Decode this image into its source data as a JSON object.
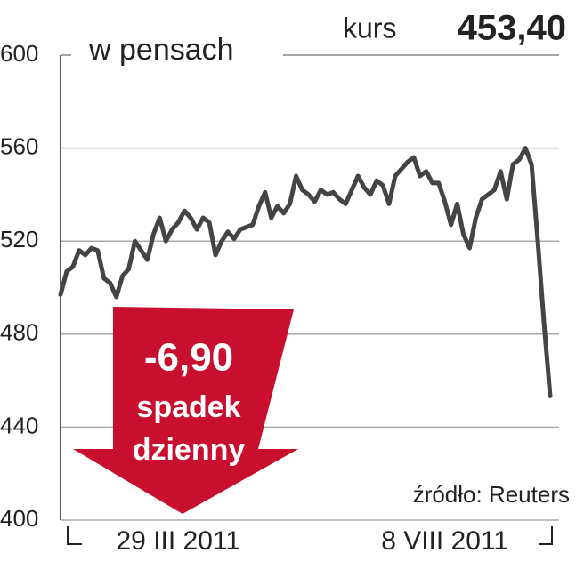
{
  "chart_data": {
    "type": "line",
    "ylabel": "w pensach",
    "price_label": "kurs",
    "price": "453,40",
    "annotation": [
      "-6,90",
      "spadek",
      "dzienny"
    ],
    "source": "źródło: Reuters",
    "categories": [
      null,
      null,
      null,
      null,
      null,
      null,
      null,
      null,
      null,
      null,
      null,
      null,
      null,
      null,
      null,
      null,
      null,
      null,
      null,
      "29 III 2011",
      null,
      null,
      null,
      null,
      null,
      null,
      null,
      null,
      null,
      null,
      null,
      null,
      null,
      null,
      null,
      null,
      null,
      null,
      null,
      null,
      null,
      null,
      null,
      null,
      null,
      null,
      null,
      null,
      null,
      null,
      null,
      null,
      null,
      null,
      null,
      null,
      null,
      null,
      null,
      null,
      null,
      null,
      "8 VIII 2011",
      null,
      null,
      null,
      null,
      null,
      null,
      null,
      null,
      null,
      null,
      null,
      null,
      null,
      null,
      null,
      null,
      null
    ],
    "series": [
      {
        "color": "#444444",
        "values": [
          497,
          507,
          509,
          516,
          514,
          517,
          516,
          504,
          502,
          496,
          505,
          508,
          520,
          516,
          512,
          523,
          530,
          520,
          525,
          528,
          533,
          530,
          525,
          530,
          528,
          514,
          520,
          524,
          521,
          525,
          526,
          527,
          535,
          541,
          530,
          535,
          532,
          536,
          548,
          542,
          540,
          537,
          542,
          540,
          541,
          538,
          536,
          542,
          548,
          543,
          540,
          546,
          544,
          536,
          548,
          551,
          554,
          556,
          548,
          550,
          545,
          545,
          537,
          527,
          536,
          523,
          517,
          530,
          538,
          540,
          542,
          550,
          538,
          553,
          555,
          560,
          553,
          520,
          485,
          453.4
        ]
      }
    ],
    "ylim": [
      400,
      600
    ],
    "yticks": [
      400,
      440,
      480,
      520,
      560,
      600
    ],
    "grid": true,
    "arrow_color": "#c8102e"
  }
}
